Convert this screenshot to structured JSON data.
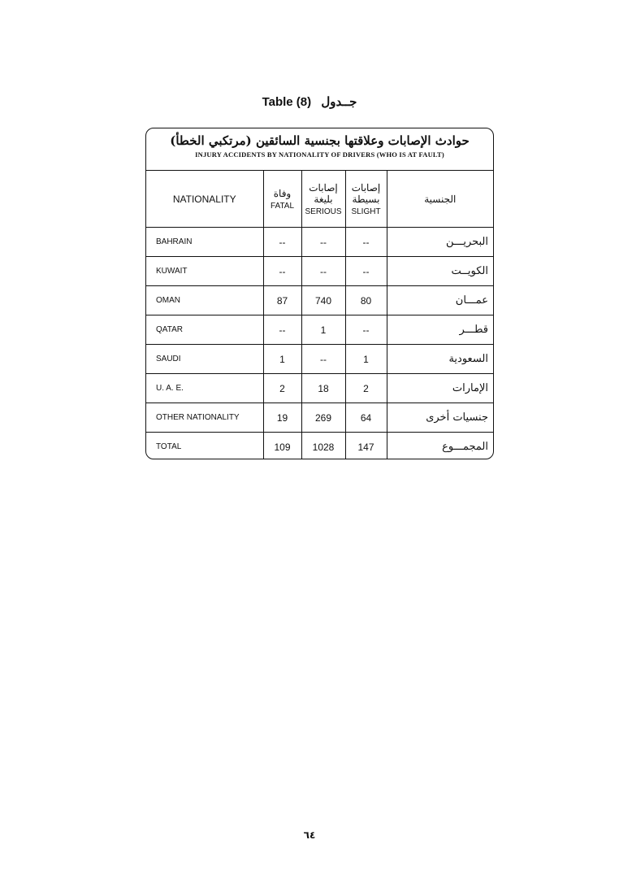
{
  "title": {
    "en": "Table (8)",
    "ar": "جــدول"
  },
  "table": {
    "title_ar": "حوادث الإصابات وعلاقتها بجنسية السائقين (مرتكبي الخطأ)",
    "title_en": "INJURY ACCIDENTS  BY NATIONALITY OF DRIVERS (WHO IS AT FAULT)",
    "headers": {
      "nationality": "NATIONALITY",
      "fatal_ar": "وفاة",
      "fatal_en": "FATAL",
      "serious_ar": "إصابات بليغة",
      "serious_en": "SERIOUS",
      "slight_ar": "إصابات بسيطة",
      "slight_en": "SLIGHT",
      "nationality_ar": "الجنسية"
    },
    "rows": [
      {
        "en": "BAHRAIN",
        "fatal": "--",
        "serious": "--",
        "slight": "--",
        "ar": "البحريـــن"
      },
      {
        "en": "KUWAIT",
        "fatal": "--",
        "serious": "--",
        "slight": "--",
        "ar": "الكويــت"
      },
      {
        "en": "OMAN",
        "fatal": "87",
        "serious": "740",
        "slight": "80",
        "ar": "عمـــان"
      },
      {
        "en": "QATAR",
        "fatal": "--",
        "serious": "1",
        "slight": "--",
        "ar": "قطـــر"
      },
      {
        "en": "SAUDI",
        "fatal": "1",
        "serious": "--",
        "slight": "1",
        "ar": "السعودية"
      },
      {
        "en": "U. A. E.",
        "fatal": "2",
        "serious": "18",
        "slight": "2",
        "ar": "الإمارات"
      },
      {
        "en": "OTHER NATIONALITY",
        "fatal": "19",
        "serious": "269",
        "slight": "64",
        "ar": "جنسيات أخرى"
      },
      {
        "en": "TOTAL",
        "fatal": "109",
        "serious": "1028",
        "slight": "147",
        "ar": "المجمـــوع"
      }
    ]
  },
  "page_number": "٦٤"
}
